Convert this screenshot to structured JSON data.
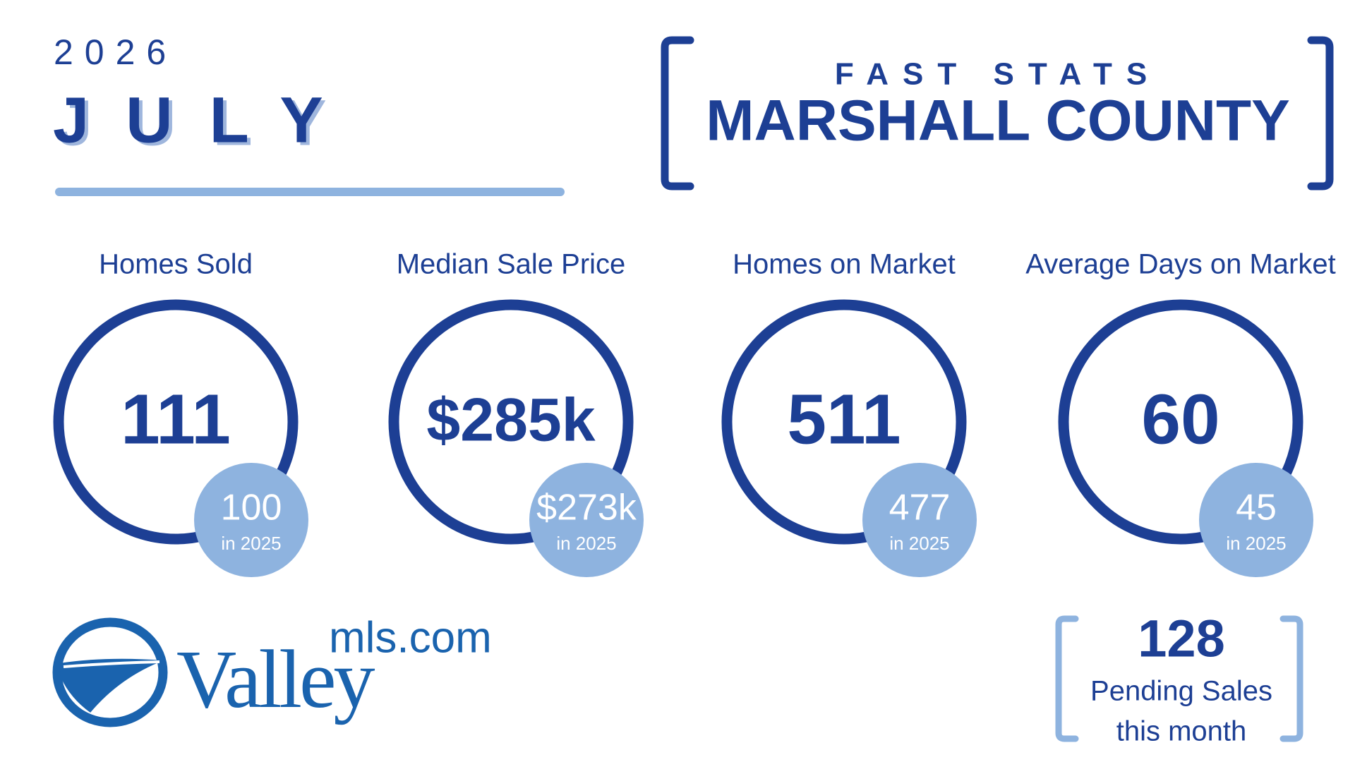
{
  "header": {
    "year": "2026",
    "month": "JULY"
  },
  "banner": {
    "kicker": "FAST STATS",
    "title": "MARSHALL COUNTY"
  },
  "stats": [
    {
      "label": "Homes Sold",
      "value": "111",
      "prior_value": "100",
      "prior_label": "in 2025"
    },
    {
      "label": "Median Sale Price",
      "value": "$285k",
      "prior_value": "$273k",
      "prior_label": "in 2025"
    },
    {
      "label": "Homes on Market",
      "value": "511",
      "prior_value": "477",
      "prior_label": "in 2025"
    },
    {
      "label": "Average Days on Market",
      "value": "60",
      "prior_value": "45",
      "prior_label": "in 2025"
    }
  ],
  "pending": {
    "value": "128",
    "line1": "Pending Sales",
    "line2": "this month"
  },
  "logo": {
    "word": "Valley",
    "domain": "mls.com"
  }
}
